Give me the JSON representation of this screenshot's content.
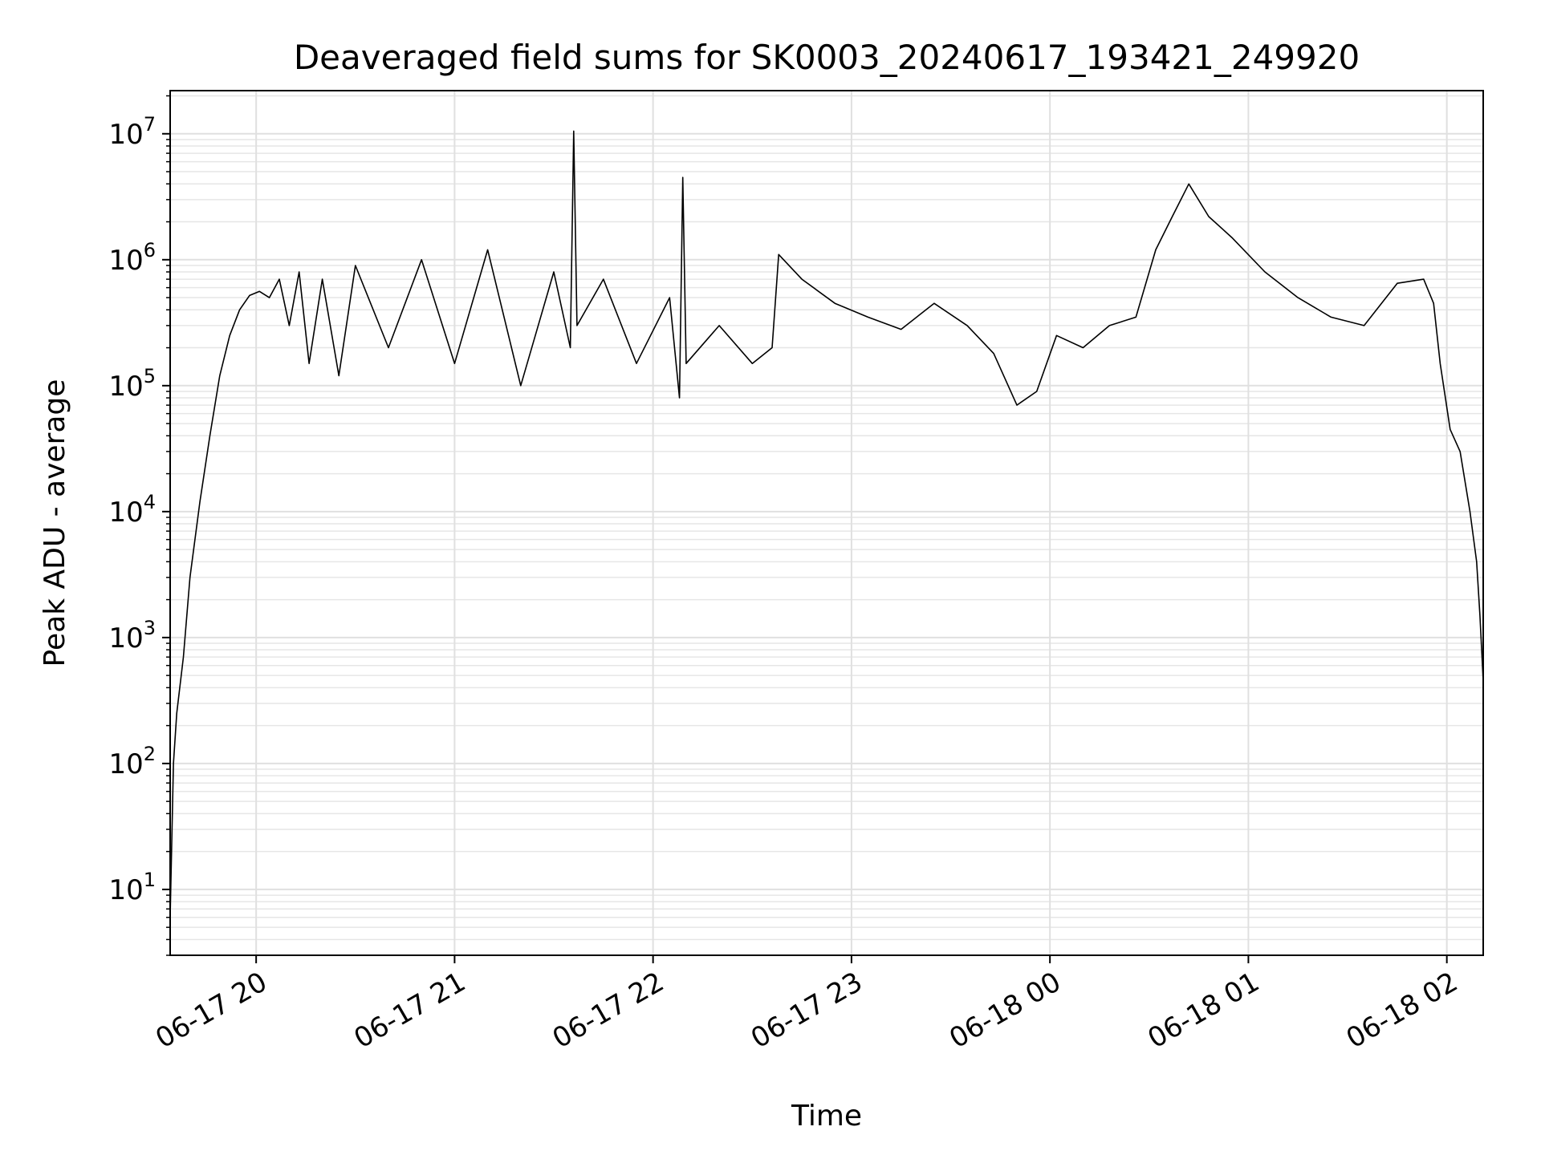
{
  "chart_data": {
    "type": "line",
    "title": "Deaveraged field sums for SK0003_20240617_193421_249920",
    "xlabel": "Time",
    "ylabel": "Peak ADU - average",
    "yscale": "log",
    "ylim": [
      3,
      22000000
    ],
    "xlim": [
      "2024-06-17 19:34",
      "2024-06-18 02:11"
    ],
    "grid": true,
    "x_ticks": [
      "06-17 20",
      "06-17 21",
      "06-17 22",
      "06-17 23",
      "06-18 00",
      "06-18 01",
      "06-18 02"
    ],
    "y_ticks": [
      {
        "base": "10",
        "exp": "1"
      },
      {
        "base": "10",
        "exp": "2"
      },
      {
        "base": "10",
        "exp": "3"
      },
      {
        "base": "10",
        "exp": "4"
      },
      {
        "base": "10",
        "exp": "5"
      },
      {
        "base": "10",
        "exp": "6"
      },
      {
        "base": "10",
        "exp": "7"
      }
    ],
    "series": [
      {
        "color": "#000000",
        "x": [
          "2024-06-17 19:34",
          "2024-06-17 19:35",
          "2024-06-17 19:36",
          "2024-06-17 19:38",
          "2024-06-17 19:40",
          "2024-06-17 19:43",
          "2024-06-17 19:46",
          "2024-06-17 19:49",
          "2024-06-17 19:52",
          "2024-06-17 19:55",
          "2024-06-17 19:58",
          "2024-06-17 20:01",
          "2024-06-17 20:04",
          "2024-06-17 20:07",
          "2024-06-17 20:10",
          "2024-06-17 20:13",
          "2024-06-17 20:16",
          "2024-06-17 20:20",
          "2024-06-17 20:25",
          "2024-06-17 20:30",
          "2024-06-17 20:40",
          "2024-06-17 20:50",
          "2024-06-17 21:00",
          "2024-06-17 21:10",
          "2024-06-17 21:20",
          "2024-06-17 21:30",
          "2024-06-17 21:35",
          "2024-06-17 21:36",
          "2024-06-17 21:37",
          "2024-06-17 21:45",
          "2024-06-17 21:55",
          "2024-06-17 22:05",
          "2024-06-17 22:08",
          "2024-06-17 22:09",
          "2024-06-17 22:10",
          "2024-06-17 22:20",
          "2024-06-17 22:30",
          "2024-06-17 22:36",
          "2024-06-17 22:38",
          "2024-06-17 22:45",
          "2024-06-17 22:55",
          "2024-06-17 23:05",
          "2024-06-17 23:15",
          "2024-06-17 23:25",
          "2024-06-17 23:35",
          "2024-06-17 23:43",
          "2024-06-17 23:50",
          "2024-06-17 23:56",
          "2024-06-18 00:02",
          "2024-06-18 00:10",
          "2024-06-18 00:18",
          "2024-06-18 00:26",
          "2024-06-18 00:32",
          "2024-06-18 00:37",
          "2024-06-18 00:42",
          "2024-06-18 00:48",
          "2024-06-18 00:55",
          "2024-06-18 01:05",
          "2024-06-18 01:15",
          "2024-06-18 01:25",
          "2024-06-18 01:35",
          "2024-06-18 01:45",
          "2024-06-18 01:53",
          "2024-06-18 01:56",
          "2024-06-18 01:58",
          "2024-06-18 02:01",
          "2024-06-18 02:04",
          "2024-06-18 02:07",
          "2024-06-18 02:09",
          "2024-06-18 02:10",
          "2024-06-18 02:11"
        ],
        "y": [
          6,
          100,
          250,
          700,
          3000,
          12000,
          40000,
          120000,
          250000,
          400000,
          520000,
          560000,
          500000,
          700000,
          300000,
          800000,
          150000,
          700000,
          120000,
          900000,
          200000,
          1000000,
          150000,
          1200000,
          100000,
          800000,
          200000,
          10500000,
          300000,
          700000,
          150000,
          500000,
          80000,
          4500000,
          150000,
          300000,
          150000,
          200000,
          1100000,
          700000,
          450000,
          350000,
          280000,
          450000,
          300000,
          180000,
          70000,
          90000,
          250000,
          200000,
          300000,
          350000,
          1200000,
          2200000,
          4000000,
          2200000,
          1500000,
          800000,
          500000,
          350000,
          300000,
          650000,
          700000,
          450000,
          150000,
          45000,
          30000,
          10000,
          4000,
          1500,
          450
        ]
      }
    ],
    "annotations": []
  }
}
